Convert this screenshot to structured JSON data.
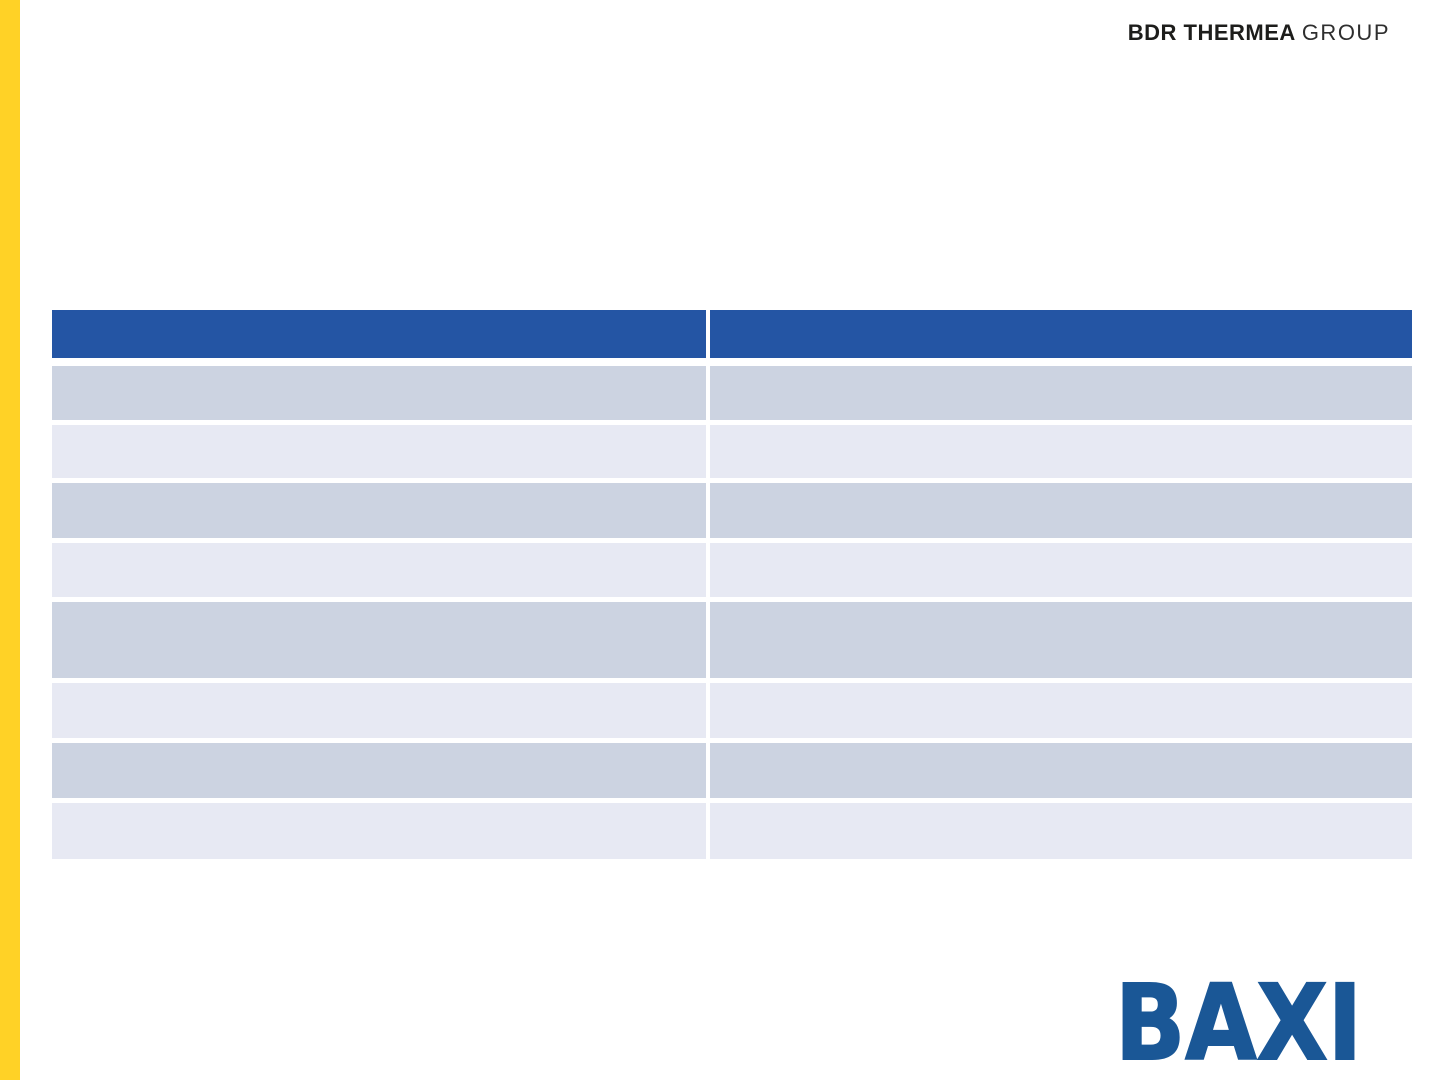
{
  "slide": {
    "background": "#ffffff",
    "accent_bar_color": "#ffd226"
  },
  "brand": {
    "top_logo": {
      "bold": "BDR THERMEA",
      "light": "GROUP",
      "text_color": "#1d1d1b"
    },
    "baxi_logo": {
      "text": "BAXI",
      "color": "#1a5796"
    }
  },
  "table": {
    "header_bg": "#2455a4",
    "row_color_odd": "#ccd3e1",
    "row_color_even": "#e7e9f3",
    "header": {
      "cells": [
        "",
        ""
      ]
    },
    "rows": [
      {
        "cells": [
          "",
          ""
        ]
      },
      {
        "cells": [
          "",
          ""
        ]
      },
      {
        "cells": [
          "",
          ""
        ]
      },
      {
        "cells": [
          "",
          ""
        ]
      },
      {
        "cells": [
          "",
          ""
        ]
      },
      {
        "cells": [
          "",
          ""
        ]
      },
      {
        "cells": [
          "",
          ""
        ]
      },
      {
        "cells": [
          "",
          ""
        ]
      }
    ]
  }
}
